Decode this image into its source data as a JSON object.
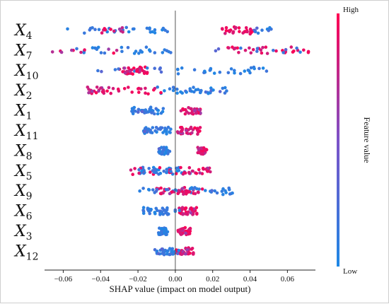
{
  "chart_data": {
    "type": "scatter",
    "subtype": "shap-beeswarm",
    "xlabel": "SHAP value (impact on model output)",
    "xlim": [
      -0.07,
      0.075
    ],
    "xticks": [
      -0.06,
      -0.04,
      -0.02,
      0.0,
      0.02,
      0.04,
      0.06
    ],
    "xtick_labels": [
      "−0.06",
      "−0.04",
      "−0.02",
      "0.00",
      "0.02",
      "0.04",
      "0.06"
    ],
    "features": [
      {
        "base": "X",
        "sub": "4",
        "low_range": [
          -0.058,
          -0.004
        ],
        "high_range": [
          0.025,
          0.044
        ],
        "low_hi": [
          0.039,
          0.054
        ],
        "high_lo": [
          -0.044,
          -0.028
        ]
      },
      {
        "base": "X",
        "sub": "7",
        "low_range": [
          -0.055,
          -0.002
        ],
        "high_range": [
          0.028,
          0.072
        ],
        "low_hi": [
          0.02,
          0.07
        ],
        "high_lo": [
          -0.066,
          -0.03
        ]
      },
      {
        "base": "X",
        "sub": "10",
        "low_range": [
          0.0,
          0.05
        ],
        "high_range": [
          -0.03,
          -0.015
        ],
        "low_hi": [
          -0.045,
          -0.005
        ],
        "high_lo": [
          -0.028,
          -0.018
        ]
      },
      {
        "base": "X",
        "sub": "2",
        "low_range": [
          -0.01,
          0.03
        ],
        "high_range": [
          -0.047,
          -0.005
        ],
        "low_hi": [
          0.005,
          0.03
        ],
        "high_lo": [
          -0.047,
          -0.038
        ]
      },
      {
        "base": "X",
        "sub": "1",
        "low_range": [
          -0.024,
          -0.006
        ],
        "high_range": [
          0.003,
          0.014
        ],
        "low_hi": [
          -0.024,
          -0.01
        ],
        "high_lo": [
          0.01,
          0.014
        ]
      },
      {
        "base": "X",
        "sub": "11",
        "low_range": [
          -0.017,
          -0.002
        ],
        "high_range": [
          0.001,
          0.014
        ],
        "low_hi": [
          -0.017,
          -0.015
        ],
        "high_lo": [
          0.002,
          0.012
        ]
      },
      {
        "base": "X",
        "sub": "8",
        "low_range": [
          -0.009,
          -0.003
        ],
        "high_range": [
          0.012,
          0.017
        ],
        "low_hi": [
          -0.009,
          -0.004
        ],
        "high_lo": [
          0.012,
          0.016
        ]
      },
      {
        "base": "X",
        "sub": "5",
        "low_range": [
          -0.02,
          0.005
        ],
        "high_range": [
          -0.025,
          0.02
        ],
        "low_hi": [
          -0.02,
          0.01
        ],
        "high_lo": [
          0.0,
          0.02
        ]
      },
      {
        "base": "X",
        "sub": "9",
        "low_range": [
          -0.02,
          0.036
        ],
        "high_range": [
          -0.01,
          0.015
        ],
        "low_hi": [
          -0.015,
          0.03
        ],
        "high_lo": [
          -0.008,
          0.008
        ]
      },
      {
        "base": "X",
        "sub": "6",
        "low_range": [
          -0.018,
          0.0
        ],
        "high_range": [
          0.002,
          0.012
        ],
        "low_hi": [
          -0.018,
          0.005
        ],
        "high_lo": [
          0.003,
          0.01
        ]
      },
      {
        "base": "X",
        "sub": "3",
        "low_range": [
          -0.009,
          -0.004
        ],
        "high_range": [
          0.001,
          0.008
        ],
        "low_hi": [
          -0.009,
          -0.005
        ],
        "high_lo": [
          0.002,
          0.008
        ]
      },
      {
        "base": "X",
        "sub": "12",
        "low_range": [
          -0.011,
          0.0
        ],
        "high_range": [
          0.0,
          0.01
        ],
        "low_hi": [
          -0.011,
          0.003
        ],
        "high_lo": [
          0.002,
          0.01
        ]
      }
    ],
    "colorbar": {
      "title": "Feature value",
      "high_label": "High",
      "low_label": "Low",
      "low_color": "#1e88e5",
      "high_color": "#ff0052"
    },
    "zero_line": 0.0,
    "grid": false,
    "legend": "colorbar-right"
  }
}
